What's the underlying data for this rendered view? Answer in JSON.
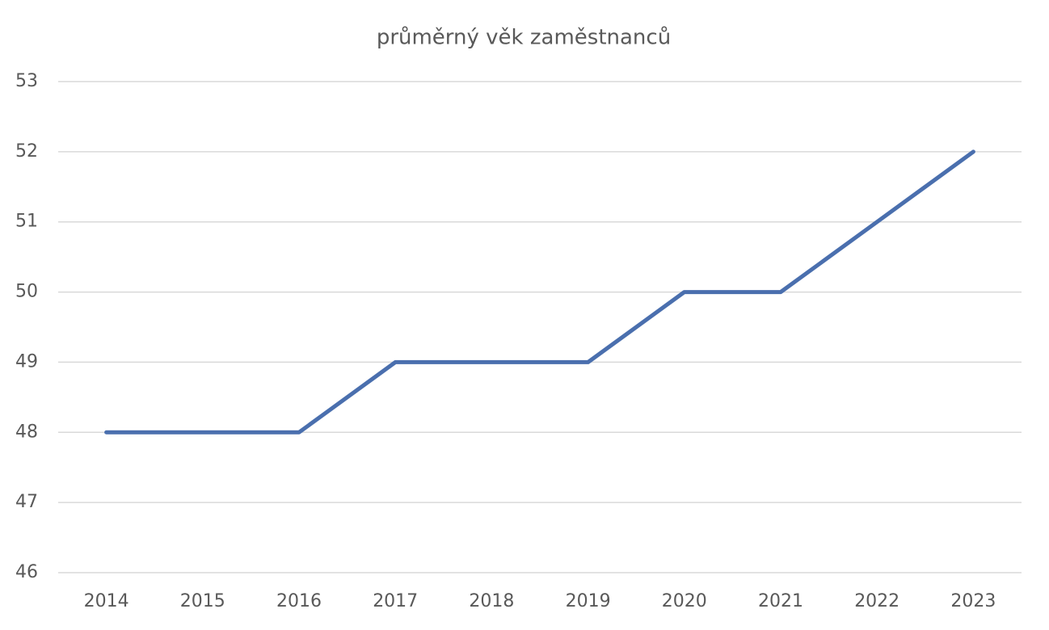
{
  "chart_data": {
    "type": "line",
    "title": "průměrný věk zaměstnanců",
    "categories": [
      "2014",
      "2015",
      "2016",
      "2017",
      "2018",
      "2019",
      "2020",
      "2021",
      "2022",
      "2023"
    ],
    "values": [
      48,
      48,
      48,
      49,
      49,
      49,
      50,
      50,
      51,
      52
    ],
    "color": "#4a6fae",
    "ylim": [
      46,
      53
    ],
    "yticks": [
      46,
      47,
      48,
      49,
      50,
      51,
      52,
      53
    ],
    "grid": true
  }
}
